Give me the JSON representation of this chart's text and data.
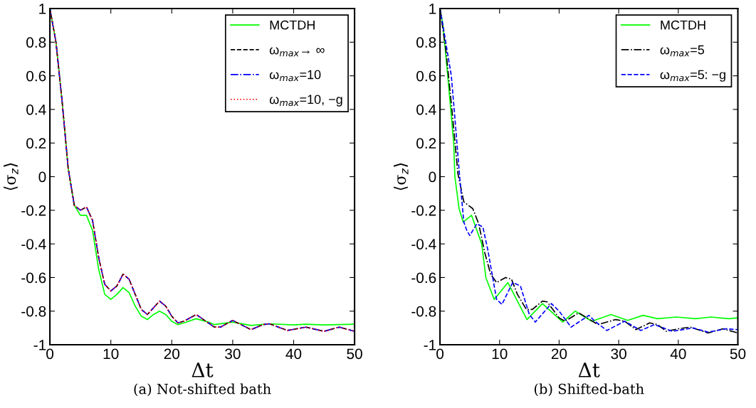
{
  "chart_data": [
    {
      "type": "line",
      "title": "(a) Not-shifted bath",
      "xlabel": "Δt",
      "ylabel": "⟨σ$_{z}$⟩",
      "xlim": [
        0,
        50
      ],
      "ylim": [
        -1,
        1
      ],
      "xticks": [
        0,
        10,
        20,
        30,
        40,
        50
      ],
      "yticks": [
        -1,
        -0.8,
        -0.6,
        -0.4,
        -0.2,
        0,
        0.2,
        0.4,
        0.6,
        0.8,
        1
      ],
      "legend": "top right",
      "series": [
        {
          "name": "MCTDH",
          "color": "#00ff00",
          "line_style": "solid",
          "x": [
            0,
            1,
            2,
            3,
            4,
            5,
            6,
            7,
            8,
            9,
            10,
            11,
            12,
            13,
            14,
            15,
            16,
            17,
            18,
            19,
            20,
            21,
            22,
            24,
            26,
            27,
            30,
            33,
            36,
            40,
            42,
            45,
            50
          ],
          "values": [
            1,
            0.8,
            0.45,
            0.05,
            -0.17,
            -0.23,
            -0.23,
            -0.32,
            -0.55,
            -0.7,
            -0.73,
            -0.7,
            -0.66,
            -0.69,
            -0.77,
            -0.83,
            -0.85,
            -0.82,
            -0.8,
            -0.82,
            -0.86,
            -0.88,
            -0.87,
            -0.845,
            -0.865,
            -0.88,
            -0.865,
            -0.885,
            -0.875,
            -0.882,
            -0.878,
            -0.882,
            -0.878
          ]
        },
        {
          "name": "ω$_{max}$→ ∞",
          "color": "#000000",
          "line_style": "dashed",
          "x": [
            0,
            1,
            2,
            3,
            4,
            5,
            6,
            7,
            8,
            9,
            10,
            11,
            12,
            13,
            14,
            15,
            16,
            17,
            18,
            19,
            20,
            21,
            22,
            24,
            26,
            27,
            28,
            30,
            33,
            35,
            36,
            39,
            42,
            45,
            47.5,
            50
          ],
          "values": [
            1,
            0.8,
            0.45,
            0.05,
            -0.17,
            -0.2,
            -0.18,
            -0.26,
            -0.48,
            -0.64,
            -0.68,
            -0.65,
            -0.58,
            -0.61,
            -0.7,
            -0.79,
            -0.82,
            -0.78,
            -0.74,
            -0.77,
            -0.83,
            -0.87,
            -0.86,
            -0.82,
            -0.87,
            -0.895,
            -0.895,
            -0.855,
            -0.91,
            -0.88,
            -0.875,
            -0.915,
            -0.895,
            -0.92,
            -0.895,
            -0.92
          ]
        },
        {
          "name": "ω$_{max}$=10",
          "color": "#0000ff",
          "line_style": "dashdot",
          "x": [
            0,
            1,
            2,
            3,
            4,
            5,
            6,
            7,
            8,
            9,
            10,
            11,
            12,
            13,
            14,
            15,
            16,
            17,
            18,
            19,
            20,
            21,
            22,
            24,
            26,
            27,
            28,
            30,
            33,
            35,
            36,
            39,
            42,
            45,
            47.5,
            50
          ],
          "values": [
            1,
            0.8,
            0.45,
            0.05,
            -0.17,
            -0.2,
            -0.18,
            -0.26,
            -0.48,
            -0.64,
            -0.68,
            -0.65,
            -0.58,
            -0.61,
            -0.7,
            -0.79,
            -0.82,
            -0.78,
            -0.74,
            -0.77,
            -0.83,
            -0.87,
            -0.86,
            -0.82,
            -0.87,
            -0.895,
            -0.895,
            -0.855,
            -0.91,
            -0.88,
            -0.875,
            -0.915,
            -0.895,
            -0.92,
            -0.895,
            -0.92
          ]
        },
        {
          "name": "ω$_{max}$=10, −g",
          "color": "#ff0000",
          "line_style": "dotted",
          "x": [
            0,
            1,
            2,
            3,
            4,
            5,
            6,
            7,
            8,
            9,
            10,
            11,
            12,
            13,
            14,
            15,
            16,
            17,
            18,
            19,
            20,
            21,
            22,
            24,
            26,
            27,
            28,
            30,
            33,
            35,
            36,
            39,
            42,
            45,
            47.5,
            50
          ],
          "values": [
            1,
            0.8,
            0.45,
            0.05,
            -0.17,
            -0.2,
            -0.18,
            -0.26,
            -0.48,
            -0.64,
            -0.68,
            -0.65,
            -0.58,
            -0.61,
            -0.7,
            -0.79,
            -0.82,
            -0.78,
            -0.74,
            -0.77,
            -0.83,
            -0.87,
            -0.86,
            -0.82,
            -0.87,
            -0.895,
            -0.895,
            -0.855,
            -0.91,
            -0.88,
            -0.875,
            -0.915,
            -0.895,
            -0.92,
            -0.895,
            -0.92
          ]
        }
      ]
    },
    {
      "type": "line",
      "title": "(b) Shifted-bath",
      "xlabel": "Δt",
      "ylabel": "⟨σ$_{z}$⟩",
      "xlim": [
        0,
        50
      ],
      "ylim": [
        -1,
        1
      ],
      "xticks": [
        0,
        10,
        20,
        30,
        40,
        50
      ],
      "yticks": [
        -1,
        -0.8,
        -0.6,
        -0.4,
        -0.2,
        0,
        0.2,
        0.4,
        0.6,
        0.8,
        1
      ],
      "legend": "top right",
      "series": [
        {
          "name": "MCTDH",
          "color": "#00ff00",
          "line_style": "solid",
          "x": [
            0,
            0.5,
            1.3,
            2.3,
            2.5,
            3.2,
            3.9,
            5.3,
            7.0,
            7.7,
            9.1,
            11.4,
            14.6,
            17.2,
            20.6,
            22.7,
            25.5,
            28.7,
            31.5,
            34.1,
            36.5,
            39.7,
            42.9,
            45.5,
            48.5,
            50
          ],
          "values": [
            1,
            0.9,
            0.6,
            0.2,
            0,
            -0.19,
            -0.27,
            -0.23,
            -0.4,
            -0.6,
            -0.73,
            -0.63,
            -0.85,
            -0.755,
            -0.865,
            -0.8,
            -0.86,
            -0.82,
            -0.855,
            -0.825,
            -0.845,
            -0.835,
            -0.845,
            -0.835,
            -0.845,
            -0.84
          ]
        },
        {
          "name": "ω$_{max}$=5",
          "color": "#000000",
          "line_style": "dashdot",
          "x": [
            0,
            1,
            2,
            3,
            4,
            5.5,
            6.5,
            7.5,
            8.5,
            9.5,
            11,
            12,
            13,
            14.5,
            15.5,
            17.2,
            18,
            20,
            21,
            23.3,
            26.5,
            29.5,
            31,
            32.9,
            35.2,
            36.5,
            38,
            40,
            42,
            45,
            47.5,
            50
          ],
          "values": [
            1,
            0.75,
            0.4,
            0.02,
            -0.15,
            -0.19,
            -0.28,
            -0.45,
            -0.58,
            -0.63,
            -0.6,
            -0.61,
            -0.7,
            -0.79,
            -0.79,
            -0.74,
            -0.745,
            -0.84,
            -0.86,
            -0.81,
            -0.88,
            -0.85,
            -0.86,
            -0.91,
            -0.87,
            -0.88,
            -0.92,
            -0.905,
            -0.895,
            -0.93,
            -0.905,
            -0.93
          ]
        },
        {
          "name": "ω$_{max}$=5: −g",
          "color": "#0000ff",
          "line_style": "dashed",
          "x": [
            0,
            0.5,
            1.9,
            2.5,
            3.3,
            4.0,
            4.5,
            5,
            6.2,
            7.2,
            8,
            9,
            9.5,
            10.4,
            12.2,
            13.5,
            15,
            16,
            18.7,
            20,
            22,
            25,
            26,
            28,
            31,
            33.7,
            36,
            39,
            42.5,
            45,
            48,
            50
          ],
          "values": [
            1,
            0.9,
            0.6,
            0.35,
            0,
            -0.27,
            -0.32,
            -0.35,
            -0.28,
            -0.3,
            -0.43,
            -0.63,
            -0.73,
            -0.76,
            -0.63,
            -0.65,
            -0.82,
            -0.865,
            -0.755,
            -0.8,
            -0.895,
            -0.825,
            -0.86,
            -0.915,
            -0.86,
            -0.915,
            -0.88,
            -0.92,
            -0.9,
            -0.925,
            -0.905,
            -0.91
          ]
        }
      ]
    }
  ]
}
